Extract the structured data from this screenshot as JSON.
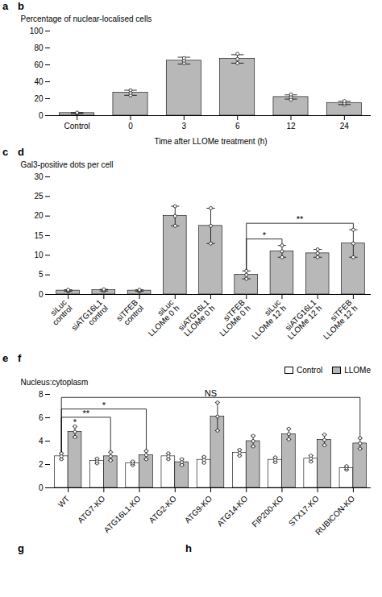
{
  "chart_data": [
    {
      "type": "bar",
      "title": "b",
      "categories": [
        "Control",
        "0",
        "3",
        "6",
        "12",
        "24"
      ],
      "values": [
        3,
        27,
        65,
        67,
        22,
        15
      ],
      "errors": [
        0.5,
        3,
        4,
        5,
        2.5,
        2
      ],
      "points": [
        [
          2.5,
          3.0,
          3.5
        ],
        [
          24,
          27,
          30
        ],
        [
          62,
          65,
          68
        ],
        [
          62,
          67,
          73
        ],
        [
          19,
          22,
          25
        ],
        [
          13,
          15,
          17
        ]
      ],
      "color": "#b8b8b8",
      "xlabel": "Time after LLOMe treatment (h)",
      "ylabel": "Percentage of nuclear-localised cells",
      "ylim": [
        0,
        100
      ],
      "yticks": [
        0,
        20,
        40,
        60,
        80,
        100
      ]
    },
    {
      "type": "bar",
      "title": "d",
      "categories": [
        "siLuc\ncontrol",
        "siATG16L1\ncontrol",
        "siTFEB\ncontrol",
        "siLuc\nLLOMe 0 h",
        "siATG16L1\nLLOMe 0 h",
        "siTFEB\nLLOMe 0 h",
        "siLuc\nLLOMe 12 h",
        "siATG16L1\nLLOMe 12 h",
        "siTFEB\nLLOMe 12 h"
      ],
      "values": [
        1.0,
        1.1,
        1.0,
        20.0,
        17.5,
        5.0,
        11.0,
        10.5,
        13.0
      ],
      "errors": [
        0.2,
        0.2,
        0.2,
        2.5,
        4.5,
        1.0,
        1.5,
        1.0,
        3.5
      ],
      "points": [
        [
          0.8,
          1.0,
          1.2
        ],
        [
          0.9,
          1.1,
          1.3
        ],
        [
          0.8,
          1.0,
          1.2
        ],
        [
          17.5,
          20.0,
          22.5
        ],
        [
          13.0,
          17.5,
          22.0
        ],
        [
          4.0,
          5.0,
          6.0
        ],
        [
          9.5,
          11.0,
          12.5
        ],
        [
          9.5,
          10.5,
          11.5
        ],
        [
          9.5,
          13.0,
          16.5
        ]
      ],
      "color": "#b8b8b8",
      "ylabel": "Gal3-positive dots per cell",
      "ylim": [
        0,
        30
      ],
      "yticks": [
        0,
        5,
        10,
        15,
        20,
        25,
        30
      ],
      "annotations": [
        {
          "text": "*",
          "from": {
            "category": "siTFEB\nLLOMe 0 h"
          },
          "to": {
            "category": "siLuc\nLLOMe 12 h"
          }
        },
        {
          "text": "**",
          "from": {
            "category": "siTFEB\nLLOMe 0 h"
          },
          "to": {
            "category": "siTFEB\nLLOMe 12 h"
          }
        }
      ]
    },
    {
      "type": "bar",
      "title": "f",
      "categories": [
        "WT",
        "ATG7-KO",
        "ATG16L1-KO",
        "ATG2-KO",
        "ATG9-KO",
        "ATG14-KO",
        "FIP200-KO",
        "STX17-KO",
        "RUBICON-KO"
      ],
      "series": [
        {
          "name": "Control",
          "color": "#ffffff",
          "values": [
            2.7,
            2.3,
            2.1,
            2.7,
            2.4,
            3.0,
            2.4,
            2.5,
            1.7
          ],
          "errors": [
            0.25,
            0.2,
            0.15,
            0.25,
            0.25,
            0.25,
            0.2,
            0.25,
            0.15
          ],
          "points": [
            [
              2.45,
              2.7,
              2.95
            ],
            [
              2.1,
              2.3,
              2.5
            ],
            [
              1.95,
              2.1,
              2.25
            ],
            [
              2.45,
              2.7,
              2.95
            ],
            [
              2.15,
              2.4,
              2.65
            ],
            [
              2.75,
              3.0,
              3.25
            ],
            [
              2.2,
              2.4,
              2.6
            ],
            [
              2.25,
              2.5,
              2.75
            ],
            [
              1.55,
              1.7,
              1.85
            ]
          ]
        },
        {
          "name": "LLOMe",
          "color": "#b8b8b8",
          "values": [
            4.8,
            2.7,
            2.8,
            2.2,
            6.1,
            4.0,
            4.6,
            4.1,
            3.8
          ],
          "errors": [
            0.45,
            0.35,
            0.35,
            0.25,
            1.2,
            0.45,
            0.45,
            0.45,
            0.45
          ],
          "points": [
            [
              4.35,
              4.8,
              5.25
            ],
            [
              2.35,
              2.7,
              3.05
            ],
            [
              2.45,
              2.8,
              3.15
            ],
            [
              1.95,
              2.2,
              2.45
            ],
            [
              4.9,
              6.1,
              7.3
            ],
            [
              3.55,
              4.0,
              4.45
            ],
            [
              4.15,
              4.6,
              5.05
            ],
            [
              3.65,
              4.1,
              4.55
            ],
            [
              3.35,
              3.8,
              4.25
            ]
          ]
        }
      ],
      "ylabel": "Nucleus:cytoplasm",
      "ylim": [
        0,
        8
      ],
      "yticks": [
        0,
        2,
        4,
        6,
        8
      ],
      "legend": "upper right",
      "annotations": [
        {
          "text": "*",
          "at": {
            "category": "WT",
            "series": "LLOMe"
          }
        },
        {
          "text": "**",
          "from": {
            "category": "WT",
            "series": "Control"
          },
          "to": {
            "category": "ATG7-KO",
            "series": "LLOMe"
          }
        },
        {
          "text": "*",
          "from": {
            "category": "WT",
            "series": "Control"
          },
          "to": {
            "category": "ATG16L1-KO",
            "series": "LLOMe"
          }
        },
        {
          "text": "NS",
          "from": {
            "category": "WT",
            "series": "Control"
          },
          "to": {
            "category": "RUBICON-KO",
            "series": "LLOMe"
          }
        }
      ]
    }
  ],
  "annotations": [
    {
      "text": "a"
    },
    {
      "text": "c"
    },
    {
      "text": "e"
    },
    {
      "text": "g"
    },
    {
      "text": "h"
    }
  ]
}
